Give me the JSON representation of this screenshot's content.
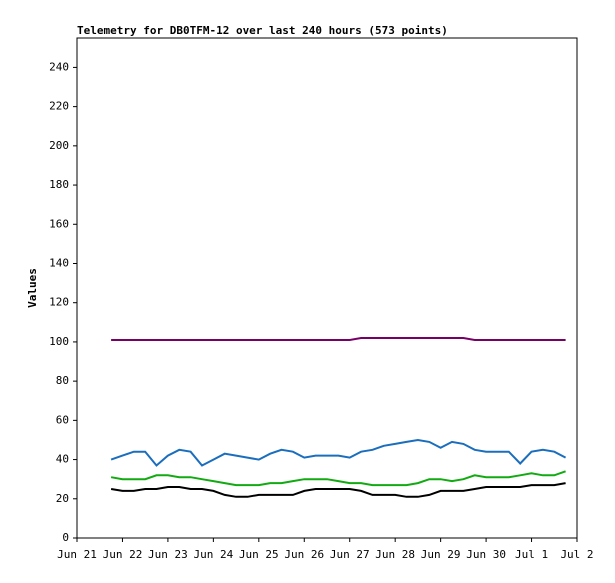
{
  "chart_data": {
    "type": "line",
    "title": "Telemetry for DB0TFM-12 over last 240 hours (573 points)",
    "y_label": "Values",
    "x": [
      0.75,
      1,
      1.25,
      1.5,
      1.75,
      2,
      2.25,
      2.5,
      2.75,
      3,
      3.25,
      3.5,
      3.75,
      4,
      4.25,
      4.5,
      4.75,
      5,
      5.25,
      5.5,
      5.75,
      6,
      6.25,
      6.5,
      6.75,
      7,
      7.25,
      7.5,
      7.75,
      8,
      8.25,
      8.5,
      8.75,
      9,
      9.25,
      9.5,
      9.75,
      10,
      10.25,
      10.5,
      10.75
    ],
    "series": [
      {
        "color": "#770066",
        "values": [
          101,
          101,
          101,
          101,
          101,
          101,
          101,
          101,
          101,
          101,
          101,
          101,
          101,
          101,
          101,
          101,
          101,
          101,
          101,
          101,
          101,
          101,
          102,
          102,
          102,
          102,
          102,
          102,
          102,
          102,
          102,
          102,
          101,
          101,
          101,
          101,
          101,
          101,
          101,
          101,
          101
        ]
      },
      {
        "color": "#1a6ebd",
        "values": [
          40,
          42,
          44,
          44,
          37,
          42,
          45,
          44,
          37,
          40,
          43,
          42,
          41,
          40,
          43,
          45,
          44,
          41,
          42,
          42,
          42,
          41,
          44,
          45,
          47,
          48,
          49,
          50,
          49,
          46,
          49,
          48,
          45,
          44,
          44,
          44,
          38,
          44,
          45,
          44,
          41
        ]
      },
      {
        "color": "#11aa11",
        "values": [
          31,
          30,
          30,
          30,
          32,
          32,
          31,
          31,
          30,
          29,
          28,
          27,
          27,
          27,
          28,
          28,
          29,
          30,
          30,
          30,
          29,
          28,
          28,
          27,
          27,
          27,
          27,
          28,
          30,
          30,
          29,
          30,
          32,
          31,
          31,
          31,
          32,
          33,
          32,
          32,
          34
        ]
      },
      {
        "color": "#000000",
        "values": [
          25,
          24,
          24,
          25,
          25,
          26,
          26,
          25,
          25,
          24,
          22,
          21,
          21,
          22,
          22,
          22,
          22,
          24,
          25,
          25,
          25,
          25,
          24,
          22,
          22,
          22,
          21,
          21,
          22,
          24,
          24,
          24,
          25,
          26,
          26,
          26,
          26,
          27,
          27,
          27,
          28
        ]
      }
    ],
    "xlim": [
      0,
      11
    ],
    "xticks": [
      {
        "value": 0,
        "label": "Jun 21"
      },
      {
        "value": 1,
        "label": "Jun 22"
      },
      {
        "value": 2,
        "label": "Jun 23"
      },
      {
        "value": 3,
        "label": "Jun 24"
      },
      {
        "value": 4,
        "label": "Jun 25"
      },
      {
        "value": 5,
        "label": "Jun 26"
      },
      {
        "value": 6,
        "label": "Jun 27"
      },
      {
        "value": 7,
        "label": "Jun 28"
      },
      {
        "value": 8,
        "label": "Jun 29"
      },
      {
        "value": 9,
        "label": "Jun 30"
      },
      {
        "value": 10,
        "label": "Jul 1"
      },
      {
        "value": 11,
        "label": "Jul 2"
      }
    ],
    "ylim": [
      0,
      255
    ],
    "yticks": [
      0,
      20,
      40,
      60,
      80,
      100,
      120,
      140,
      160,
      180,
      200,
      220,
      240
    ]
  }
}
